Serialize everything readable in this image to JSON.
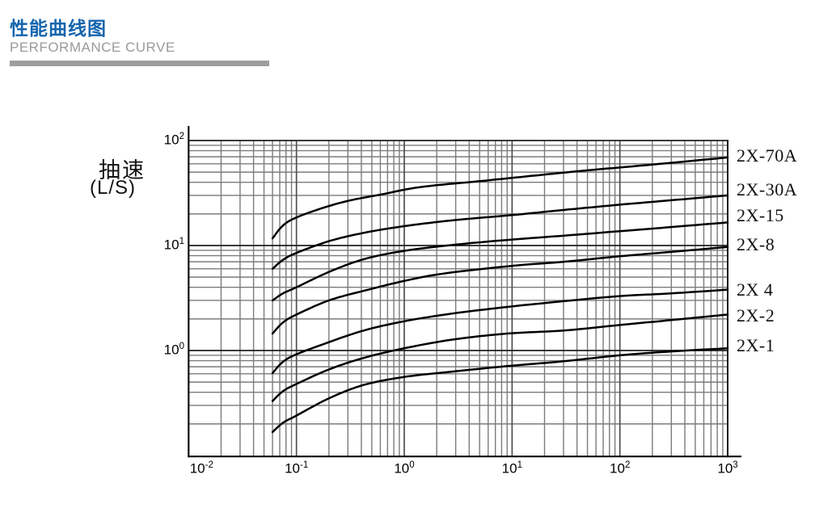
{
  "header": {
    "title": "性能曲线图",
    "subtitle": "PERFORMANCE CURVE"
  },
  "colors": {
    "accent_blue": "#1565AE",
    "divider_gray": "#9E9E9E",
    "grid_gray": "#7B7B7B",
    "curve_black": "#000000"
  },
  "chart_data": {
    "type": "line",
    "title": "性能曲线图",
    "x_scale": "log",
    "y_scale": "log",
    "xlabel": "",
    "ylabel_cn": "抽速",
    "ylabel_unit": "(L/S)",
    "xlim": [
      0.01,
      1000
    ],
    "ylim": [
      0.1,
      133
    ],
    "grid": true,
    "legend_position": "right-of-plot",
    "x_tick_exponents": [
      -2,
      -1,
      0,
      1,
      2,
      3
    ],
    "y_tick_exponents": [
      2,
      1,
      0
    ],
    "tick_base": "10",
    "series": [
      {
        "name": "2X-70A",
        "points": [
          [
            0.06,
            11.7
          ],
          [
            0.075,
            15.5
          ],
          [
            0.1,
            18.5
          ],
          [
            0.18,
            23
          ],
          [
            0.32,
            27
          ],
          [
            0.6,
            30.5
          ],
          [
            1.4,
            36
          ],
          [
            5,
            41
          ],
          [
            15,
            46
          ],
          [
            50,
            52
          ],
          [
            200,
            59
          ],
          [
            1000,
            69
          ]
        ]
      },
      {
        "name": "2X-30A",
        "points": [
          [
            0.06,
            6
          ],
          [
            0.075,
            7.3
          ],
          [
            0.1,
            8.5
          ],
          [
            0.2,
            11
          ],
          [
            0.42,
            13.2
          ],
          [
            1,
            15.3
          ],
          [
            3,
            17.5
          ],
          [
            10,
            19.5
          ],
          [
            30,
            21.8
          ],
          [
            100,
            24.5
          ],
          [
            300,
            27
          ],
          [
            1000,
            30
          ]
        ]
      },
      {
        "name": "2X-15",
        "points": [
          [
            0.06,
            3
          ],
          [
            0.075,
            3.5
          ],
          [
            0.1,
            4
          ],
          [
            0.2,
            5.6
          ],
          [
            0.42,
            7.4
          ],
          [
            1,
            8.9
          ],
          [
            3,
            10.2
          ],
          [
            10,
            11.4
          ],
          [
            30,
            12.4
          ],
          [
            100,
            13.7
          ],
          [
            300,
            15
          ],
          [
            1000,
            16.6
          ]
        ]
      },
      {
        "name": "2X-8",
        "points": [
          [
            0.06,
            1.45
          ],
          [
            0.075,
            1.85
          ],
          [
            0.1,
            2.2
          ],
          [
            0.2,
            3
          ],
          [
            0.42,
            3.7
          ],
          [
            1,
            4.6
          ],
          [
            2.3,
            5.4
          ],
          [
            10,
            6.4
          ],
          [
            30,
            7
          ],
          [
            100,
            7.9
          ],
          [
            300,
            8.7
          ],
          [
            1000,
            9.7
          ]
        ]
      },
      {
        "name": "2X 4",
        "points": [
          [
            0.06,
            0.61
          ],
          [
            0.075,
            0.78
          ],
          [
            0.1,
            0.92
          ],
          [
            0.2,
            1.2
          ],
          [
            0.42,
            1.55
          ],
          [
            1,
            1.9
          ],
          [
            2.8,
            2.25
          ],
          [
            9,
            2.6
          ],
          [
            30,
            2.95
          ],
          [
            100,
            3.3
          ],
          [
            300,
            3.5
          ],
          [
            1000,
            3.8
          ]
        ]
      },
      {
        "name": "2X-2",
        "points": [
          [
            0.06,
            0.33
          ],
          [
            0.075,
            0.41
          ],
          [
            0.1,
            0.48
          ],
          [
            0.2,
            0.66
          ],
          [
            0.42,
            0.85
          ],
          [
            1,
            1.05
          ],
          [
            2.8,
            1.27
          ],
          [
            9,
            1.45
          ],
          [
            30,
            1.55
          ],
          [
            100,
            1.75
          ],
          [
            300,
            1.95
          ],
          [
            1000,
            2.2
          ]
        ]
      },
      {
        "name": "2X-1",
        "points": [
          [
            0.06,
            0.167
          ],
          [
            0.075,
            0.205
          ],
          [
            0.1,
            0.24
          ],
          [
            0.2,
            0.35
          ],
          [
            0.42,
            0.47
          ],
          [
            1,
            0.56
          ],
          [
            2.8,
            0.63
          ],
          [
            9,
            0.71
          ],
          [
            30,
            0.79
          ],
          [
            100,
            0.9
          ],
          [
            300,
            0.98
          ],
          [
            1000,
            1.05
          ]
        ]
      }
    ]
  }
}
